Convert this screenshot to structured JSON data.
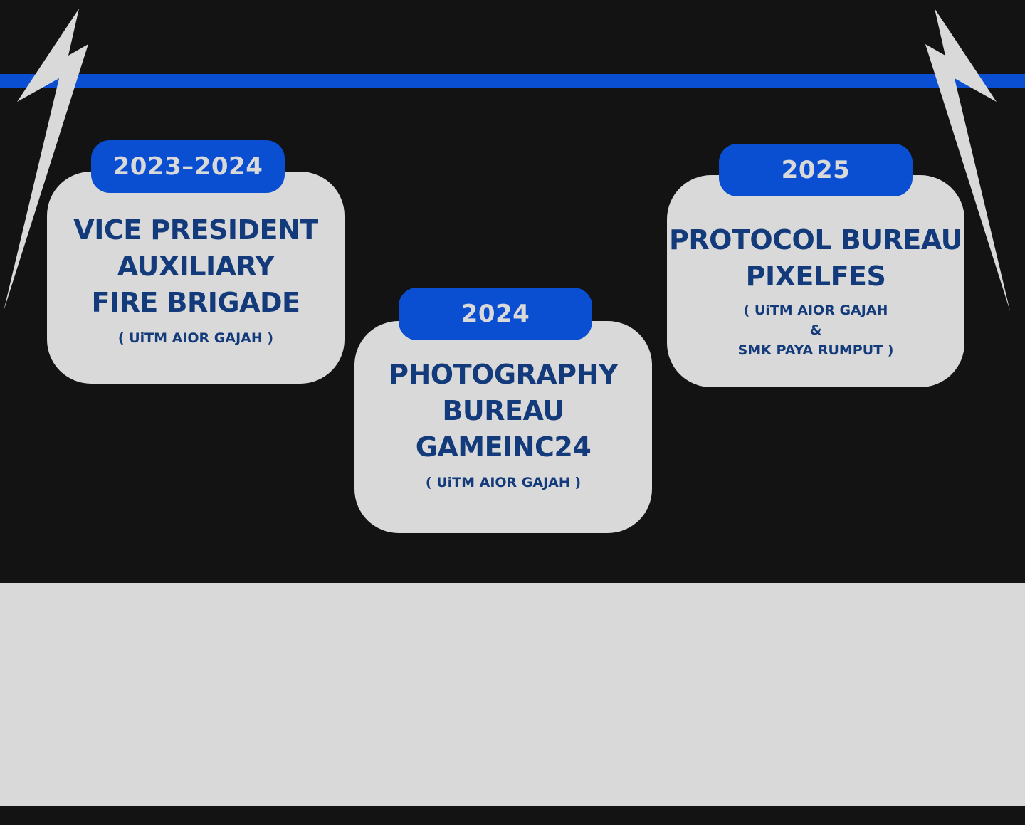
{
  "colors": {
    "background": "#131313",
    "accent_blue": "#0a4fd1",
    "card_gray": "#d9d9d9",
    "title_navy": "#133a7a"
  },
  "decorations": {
    "left_icon": "lightning-bolt-icon",
    "right_icon": "lightning-bolt-icon"
  },
  "timeline": [
    {
      "year": "2023–2024",
      "title_lines": [
        "VICE PRESIDENT",
        "AUXILIARY",
        "FIRE BRIGADE"
      ],
      "org_lines": [
        "( UiTM AIOR GAJAH  )"
      ]
    },
    {
      "year": "2024",
      "title_lines": [
        "PHOTOGRAPHY",
        "BUREAU",
        "GAMEINC24"
      ],
      "org_lines": [
        "( UiTM AIOR GAJAH  )"
      ]
    },
    {
      "year": "2025",
      "title_lines": [
        "PROTOCOL BUREAU",
        "PIXELFES"
      ],
      "org_lines": [
        "( UiTM AIOR GAJAH",
        "&",
        "SMK PAYA RUMPUT  )"
      ]
    }
  ]
}
